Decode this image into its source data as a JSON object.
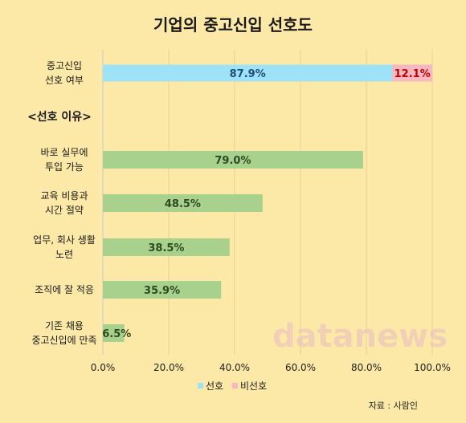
{
  "chart_data": {
    "type": "bar",
    "title": "기업의 중고신입 선호도",
    "orientation": "horizontal",
    "stacked_row": {
      "label": [
        "중고신입",
        "선호 여부"
      ],
      "series": [
        {
          "name": "선호",
          "value": 87.9,
          "label": "87.9%",
          "color": "#9ee2f8",
          "text_color": "#1f4e79"
        },
        {
          "name": "비선호",
          "value": 12.1,
          "label": "12.1%",
          "color": "#f7b8c2",
          "text_color": "#c00000"
        }
      ]
    },
    "section_label": "<선호 이유>",
    "categories": [
      [
        "바로 실무에",
        "투입 가능"
      ],
      [
        "교육 비용과",
        "시간 절약"
      ],
      [
        "업무, 회사 생활",
        "노련"
      ],
      [
        "조직에 잘 적응"
      ],
      [
        "기존 채용",
        "중고신입에 만족"
      ]
    ],
    "values": [
      79.0,
      48.5,
      38.5,
      35.9,
      6.5
    ],
    "value_labels": [
      "79.0%",
      "48.5%",
      "38.5%",
      "35.9%",
      "6.5%"
    ],
    "bar_color": "#a9d18e",
    "x_ticks": [
      "0.0%",
      "20.0%",
      "40.0%",
      "60.0%",
      "80.0%",
      "100.0%"
    ],
    "xlim": [
      0,
      100
    ],
    "grid": true,
    "legend": {
      "position": "bottom",
      "entries": [
        "선호",
        "비선호"
      ]
    },
    "source": "자료 : 사람인",
    "watermark": "datanews"
  }
}
